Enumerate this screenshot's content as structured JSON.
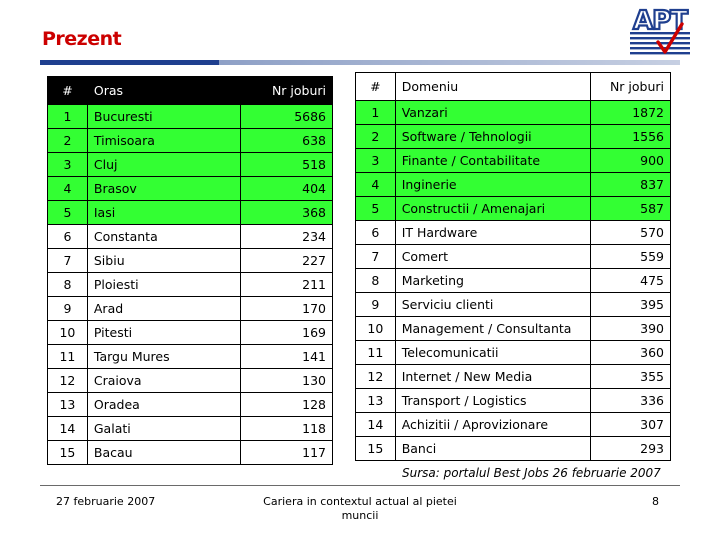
{
  "slide": {
    "title": "Prezent",
    "source_note": "Sursa: portalul Best Jobs 26 februarie 2007",
    "footer_date": "27 februarie 2007",
    "footer_center": "Cariera in contextul actual al pietei muncii",
    "page_number": "8",
    "logo_text": "APT",
    "colors": {
      "title": "#cc0000",
      "highlight": "#33ff33",
      "rule": "#1f3f8f"
    }
  },
  "cities_table": {
    "headers": [
      "#",
      "Oras",
      "Nr joburi"
    ],
    "rows": [
      [
        "1",
        "Bucuresti",
        "5686"
      ],
      [
        "2",
        "Timisoara",
        "638"
      ],
      [
        "3",
        "Cluj",
        "518"
      ],
      [
        "4",
        "Brasov",
        "404"
      ],
      [
        "5",
        "Iasi",
        "368"
      ],
      [
        "6",
        "Constanta",
        "234"
      ],
      [
        "7",
        "Sibiu",
        "227"
      ],
      [
        "8",
        "Ploiesti",
        "211"
      ],
      [
        "9",
        "Arad",
        "170"
      ],
      [
        "10",
        "Pitesti",
        "169"
      ],
      [
        "11",
        "Targu Mures",
        "141"
      ],
      [
        "12",
        "Craiova",
        "130"
      ],
      [
        "13",
        "Oradea",
        "128"
      ],
      [
        "14",
        "Galati",
        "118"
      ],
      [
        "15",
        "Bacau",
        "117"
      ]
    ],
    "highlighted_count": 5
  },
  "domains_table": {
    "headers": [
      "#",
      "Domeniu",
      "Nr joburi"
    ],
    "rows": [
      [
        "1",
        "Vanzari",
        "1872"
      ],
      [
        "2",
        "Software / Tehnologii",
        "1556"
      ],
      [
        "3",
        "Finante / Contabilitate",
        "900"
      ],
      [
        "4",
        "Inginerie",
        "837"
      ],
      [
        "5",
        "Constructii / Amenajari",
        "587"
      ],
      [
        "6",
        "IT Hardware",
        "570"
      ],
      [
        "7",
        "Comert",
        "559"
      ],
      [
        "8",
        "Marketing",
        "475"
      ],
      [
        "9",
        "Serviciu clienti",
        "395"
      ],
      [
        "10",
        "Management / Consultanta",
        "390"
      ],
      [
        "11",
        "Telecomunicatii",
        "360"
      ],
      [
        "12",
        "Internet / New Media",
        "355"
      ],
      [
        "13",
        "Transport / Logistics",
        "336"
      ],
      [
        "14",
        "Achizitii / Aprovizionare",
        "307"
      ],
      [
        "15",
        "Banci",
        "293"
      ]
    ],
    "highlighted_count": 5
  }
}
